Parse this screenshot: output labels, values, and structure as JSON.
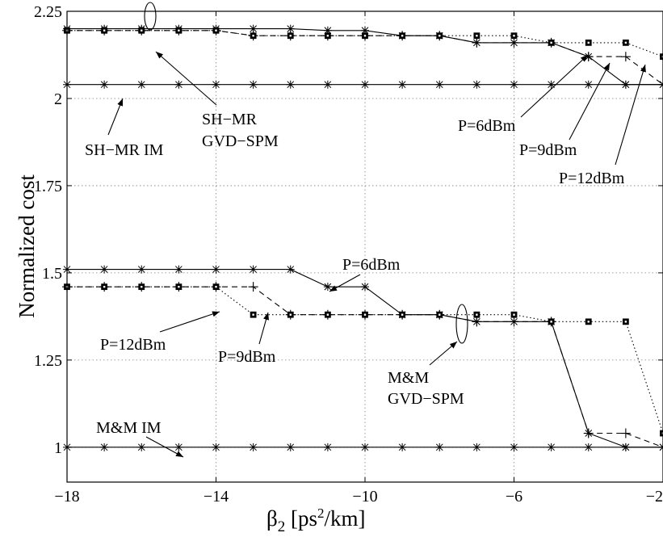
{
  "chart_data": {
    "type": "line",
    "xlabel": "β₂ [ps²/km]",
    "ylabel": "Normalized cost",
    "xlim": [
      -18,
      -2
    ],
    "ylim": [
      0.9,
      2.25
    ],
    "xticks": [
      -18,
      -14,
      -10,
      -6,
      -2
    ],
    "xtick_labels": [
      "−18",
      "−14",
      "−10",
      "−6",
      "−2"
    ],
    "yticks": [
      1,
      1.25,
      1.5,
      1.75,
      2,
      2.25
    ],
    "ytick_labels": [
      "1",
      "1.25",
      "1.5",
      "1.75",
      "2",
      "2.25"
    ],
    "grid": true,
    "series": [
      {
        "name": "SH−MR IM",
        "style": "solid",
        "marker": "star",
        "x": [
          -18,
          -17,
          -16,
          -15,
          -14,
          -13,
          -12,
          -11,
          -10,
          -9,
          -8,
          -7,
          -6,
          -5,
          -4,
          -3,
          -2
        ],
        "y": [
          2.04,
          2.04,
          2.04,
          2.04,
          2.04,
          2.04,
          2.04,
          2.04,
          2.04,
          2.04,
          2.04,
          2.04,
          2.04,
          2.04,
          2.04,
          2.04,
          2.04
        ]
      },
      {
        "name": "P=6dBm",
        "style": "solid",
        "marker": "star",
        "x": [
          -18,
          -17,
          -16,
          -15,
          -14,
          -13,
          -12,
          -11,
          -10,
          -9,
          -8,
          -7,
          -6,
          -5,
          -4,
          -3,
          -2
        ],
        "y": [
          2.2,
          2.2,
          2.2,
          2.2,
          2.2,
          2.2,
          2.2,
          2.195,
          2.195,
          2.18,
          2.18,
          2.16,
          2.16,
          2.16,
          2.12,
          2.04,
          2.04
        ]
      },
      {
        "name": "P=9dBm",
        "style": "dashed",
        "marker": "plus",
        "x": [
          -18,
          -17,
          -16,
          -15,
          -14,
          -13,
          -12,
          -11,
          -10,
          -9,
          -8,
          -7,
          -6,
          -5,
          -4,
          -3,
          -2
        ],
        "y": [
          2.195,
          2.195,
          2.195,
          2.195,
          2.195,
          2.18,
          2.18,
          2.18,
          2.18,
          2.18,
          2.18,
          2.16,
          2.16,
          2.16,
          2.12,
          2.12,
          2.04
        ]
      },
      {
        "name": "P=12dBm",
        "style": "dotted",
        "marker": "square",
        "x": [
          -18,
          -17,
          -16,
          -15,
          -14,
          -13,
          -12,
          -11,
          -10,
          -9,
          -8,
          -7,
          -6,
          -5,
          -4,
          -3,
          -2
        ],
        "y": [
          2.195,
          2.195,
          2.195,
          2.195,
          2.195,
          2.18,
          2.18,
          2.18,
          2.18,
          2.18,
          2.18,
          2.18,
          2.18,
          2.16,
          2.16,
          2.16,
          2.12
        ]
      },
      {
        "name": "M&M IM",
        "style": "solid",
        "marker": "star",
        "x": [
          -18,
          -17,
          -16,
          -15,
          -14,
          -13,
          -12,
          -11,
          -10,
          -9,
          -8,
          -7,
          -6,
          -5,
          -4,
          -3,
          -2
        ],
        "y": [
          1,
          1,
          1,
          1,
          1,
          1,
          1,
          1,
          1,
          1,
          1,
          1,
          1,
          1,
          1,
          1,
          1
        ]
      },
      {
        "name": "P=6dBm",
        "style": "solid",
        "marker": "star",
        "x": [
          -18,
          -17,
          -16,
          -15,
          -14,
          -13,
          -12,
          -11,
          -10,
          -9,
          -8,
          -7,
          -6,
          -5,
          -4,
          -3,
          -2
        ],
        "y": [
          1.51,
          1.51,
          1.51,
          1.51,
          1.51,
          1.51,
          1.51,
          1.46,
          1.46,
          1.38,
          1.38,
          1.36,
          1.36,
          1.36,
          1.04,
          1,
          1
        ]
      },
      {
        "name": "P=9dBm",
        "style": "dashed",
        "marker": "plus",
        "x": [
          -18,
          -17,
          -16,
          -15,
          -14,
          -13,
          -12,
          -11,
          -10,
          -9,
          -8,
          -7,
          -6,
          -5,
          -4,
          -3,
          -2
        ],
        "y": [
          1.46,
          1.46,
          1.46,
          1.46,
          1.46,
          1.46,
          1.38,
          1.38,
          1.38,
          1.38,
          1.38,
          1.36,
          1.36,
          1.36,
          1.04,
          1.04,
          1
        ]
      },
      {
        "name": "P=12dBm",
        "style": "dotted",
        "marker": "square",
        "x": [
          -18,
          -17,
          -16,
          -15,
          -14,
          -13,
          -12,
          -11,
          -10,
          -9,
          -8,
          -7,
          -6,
          -5,
          -4,
          -3,
          -2
        ],
        "y": [
          1.46,
          1.46,
          1.46,
          1.46,
          1.46,
          1.38,
          1.38,
          1.38,
          1.38,
          1.38,
          1.38,
          1.38,
          1.38,
          1.36,
          1.36,
          1.36,
          1.04
        ]
      }
    ],
    "annotations": {
      "sh_im": "SH−MR IM",
      "sh_gvd_1": "SH−MR",
      "sh_gvd_2": "GVD−SPM",
      "sh_p6": "P=6dBm",
      "sh_p9": "P=9dBm",
      "sh_p12": "P=12dBm",
      "mm_p6": "P=6dBm",
      "mm_p12": "P=12dBm",
      "mm_p9": "P=9dBm",
      "mm_gvd_1": "M&M",
      "mm_gvd_2": "GVD−SPM",
      "mm_im": "M&M IM"
    }
  }
}
